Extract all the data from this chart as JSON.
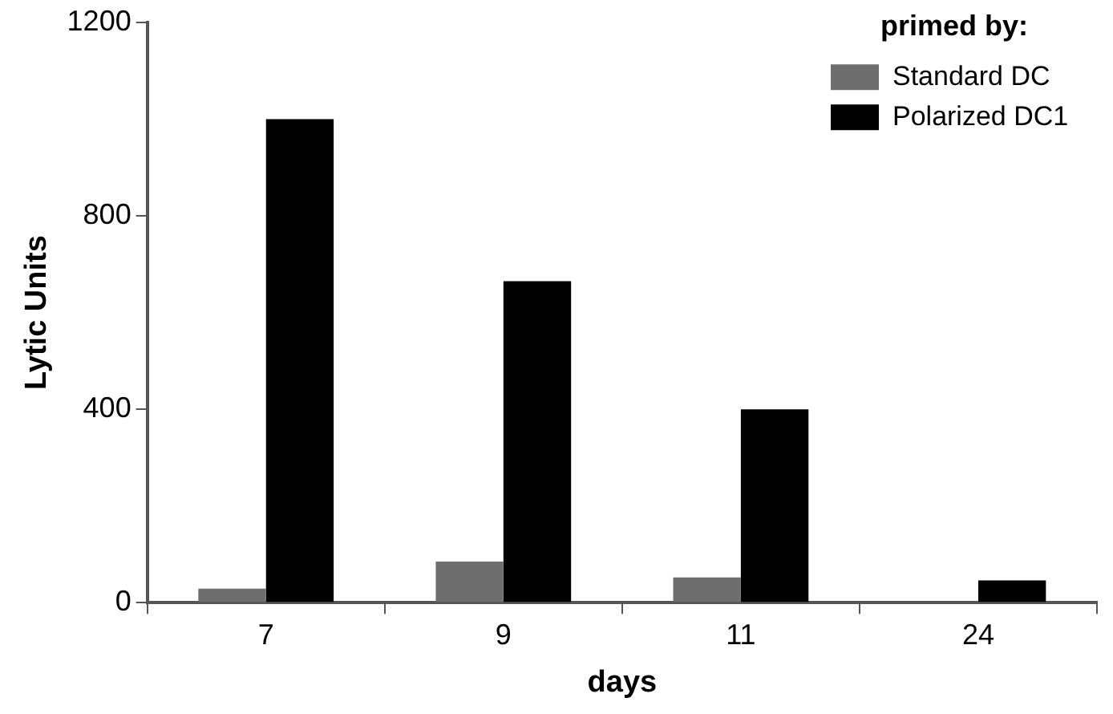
{
  "chart_data": {
    "type": "bar",
    "xlabel": "days",
    "ylabel": "Lytic Units",
    "legend_title": "primed by:",
    "categories": [
      "7",
      "9",
      "11",
      "24"
    ],
    "series": [
      {
        "name": "Standard DC",
        "color": "#6e6e6e",
        "values": [
          29,
          85,
          52,
          null
        ]
      },
      {
        "name": "Polarized DC1",
        "color": "#000000",
        "values": [
          1000,
          665,
          400,
          46
        ]
      }
    ],
    "ylim": [
      0,
      1200
    ],
    "yticks": [
      0,
      400,
      800,
      1200
    ],
    "grid": false,
    "legend": "top right"
  }
}
